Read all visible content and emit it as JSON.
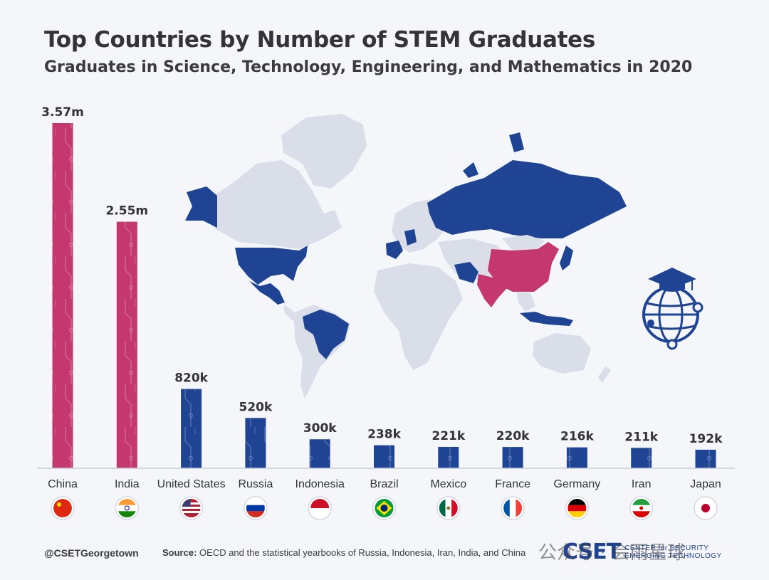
{
  "colors": {
    "highlight": "#c4376f",
    "primary": "#1f4494",
    "land": "#d9dee8",
    "background": "#f4f6fa",
    "text": "#333338"
  },
  "chart_data": {
    "type": "bar",
    "title": "Top Countries by Number of STEM Graduates",
    "subtitle": "Graduates in Science, Technology, Engineering, and Mathematics in 2020",
    "categories": [
      "China",
      "India",
      "United States",
      "Russia",
      "Indonesia",
      "Brazil",
      "Mexico",
      "France",
      "Germany",
      "Iran",
      "Japan"
    ],
    "values": [
      3570000,
      2550000,
      820000,
      520000,
      300000,
      238000,
      221000,
      220000,
      216000,
      211000,
      192000
    ],
    "value_labels": [
      "3.57m",
      "2.55m",
      "820k",
      "520k",
      "300k",
      "238k",
      "221k",
      "220k",
      "216k",
      "211k",
      "192k"
    ],
    "highlighted": [
      "China",
      "India"
    ],
    "ylim": [
      0,
      3570000
    ],
    "xlabel": "",
    "ylabel": "",
    "grid": false,
    "legend": "none"
  },
  "footer": {
    "handle": "@CSETGeorgetown",
    "source_label": "Source:",
    "source_text": "OECD and the statistical yearbooks of Russia, Indonesia, Iran, India, and China"
  },
  "logo": {
    "word": "CSET",
    "line1": "CENTER for SECURITY",
    "line2": "EMERGING TECHNOLOGY"
  },
  "watermark": "公众号 · 会雨星球",
  "icons": [
    "graduation-globe-icon",
    "flag-icon"
  ]
}
